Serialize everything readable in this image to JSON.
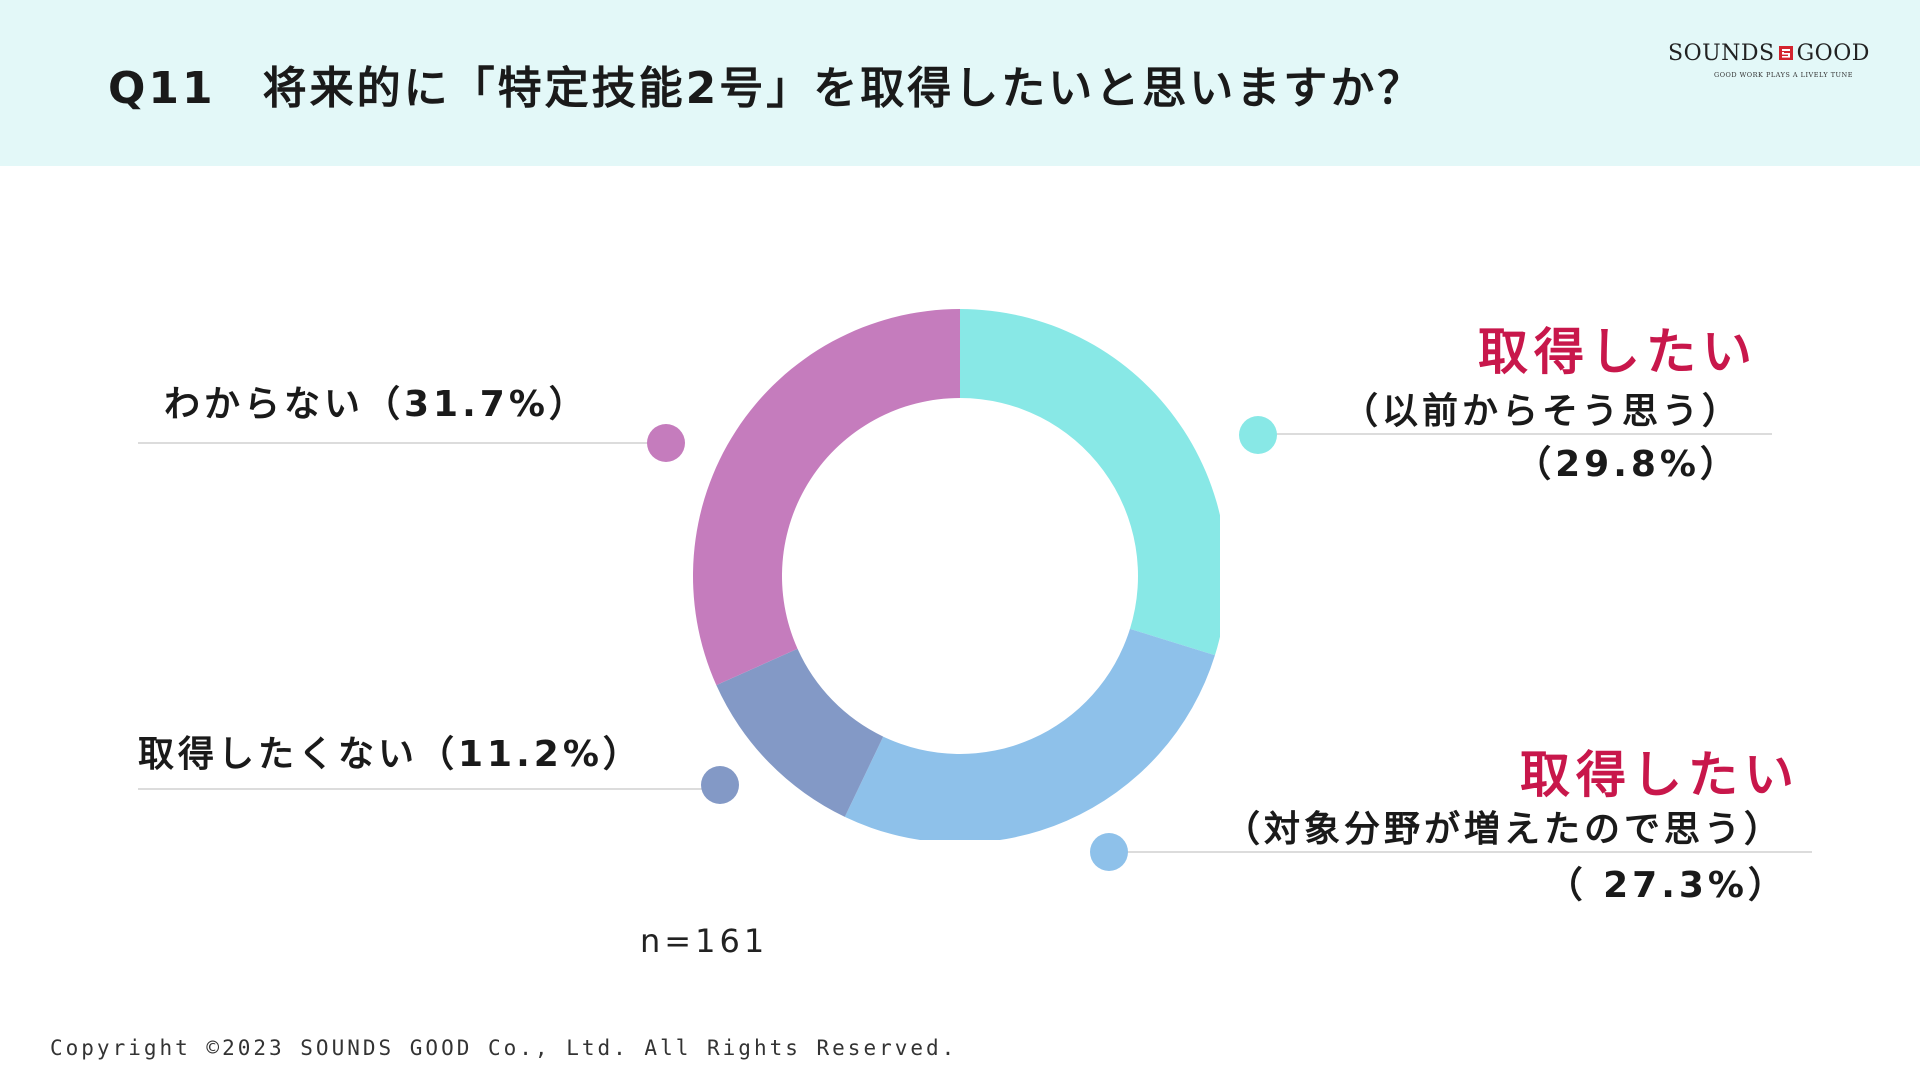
{
  "header": {
    "title": "Q11　将来的に「特定技能2号」を取得したいと思いますか？",
    "logo_left": "SOUNDS",
    "logo_right": "GOOD",
    "logo_tagline": "GOOD WORK PLAYS A LIVELY TUNE"
  },
  "chart_data": {
    "type": "pie",
    "variant": "donut",
    "title": "Q11　将来的に「特定技能2号」を取得したいと思いますか？",
    "n_label": "n=161",
    "slices": [
      {
        "key": "want_before",
        "value": 29.8,
        "color": "#88e8e6",
        "heading": "取得したい",
        "sub": "（以前からそう思う）",
        "pct": "（29.8%）"
      },
      {
        "key": "want_fields",
        "value": 27.3,
        "color": "#8ec1ea",
        "heading": "取得したい",
        "sub": "（対象分野が増えたので思う）",
        "pct": "（ 27.3%）"
      },
      {
        "key": "not_want",
        "value": 11.2,
        "color": "#8399c6",
        "label": "取得したくない（11.2%）"
      },
      {
        "key": "unknown",
        "value": 31.7,
        "color": "#c57cbd",
        "label": "わからない（31.7%）"
      }
    ]
  },
  "footer": {
    "copyright": "Copyright ©2023 SOUNDS GOOD Co., Ltd. All Rights Reserved."
  }
}
